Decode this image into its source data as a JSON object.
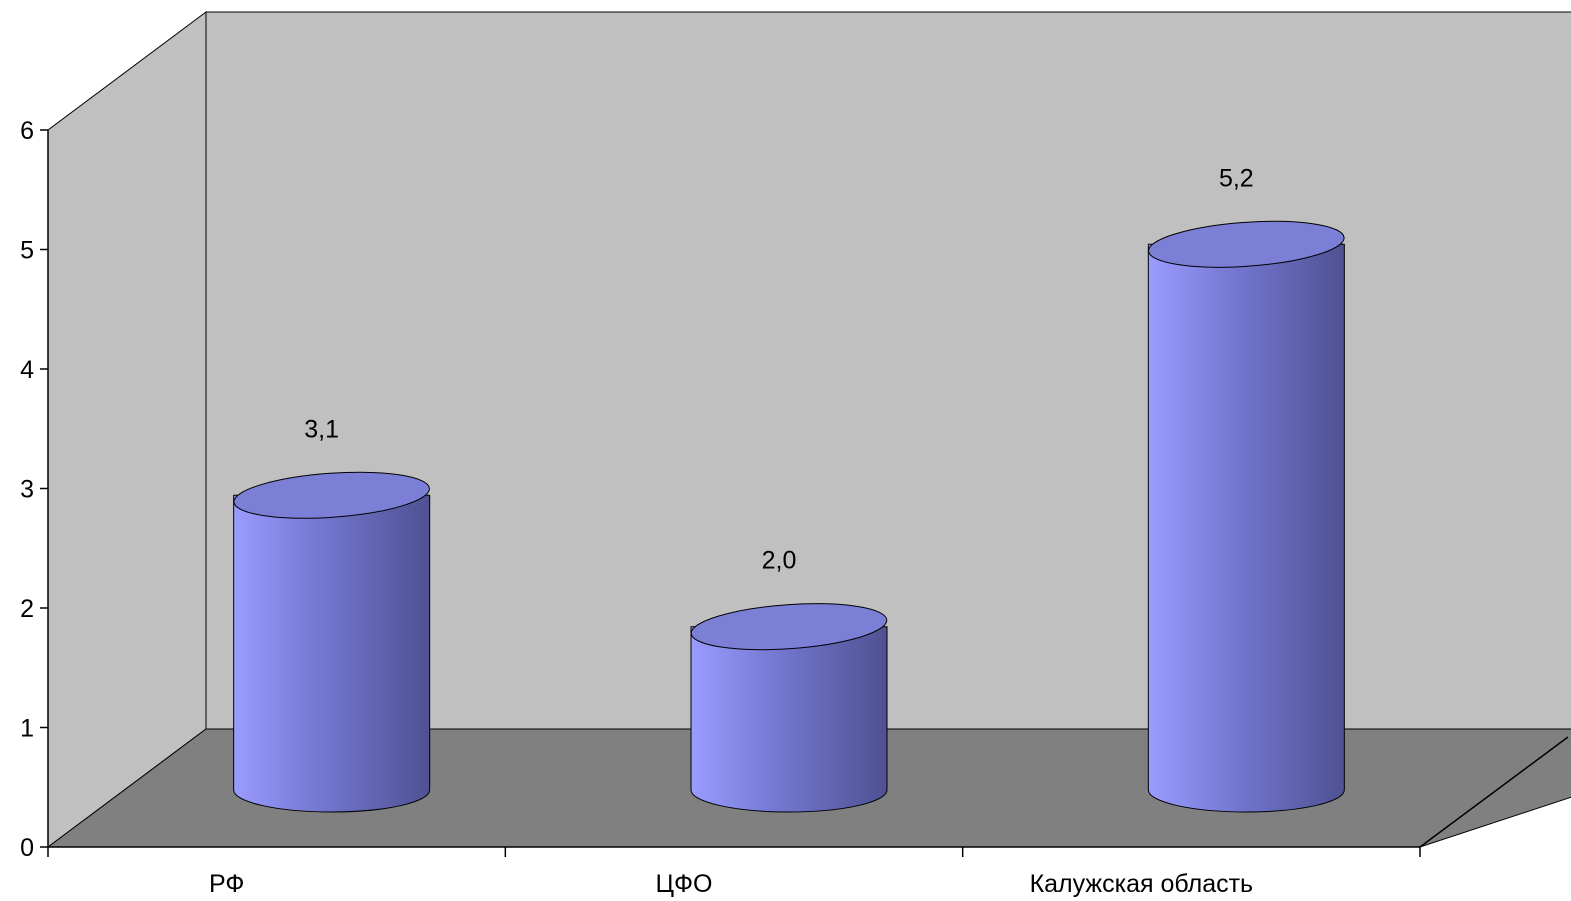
{
  "chart_data": {
    "type": "bar",
    "style": "3d-cylinder",
    "categories": [
      "РФ",
      "ЦФО",
      "Калужская область"
    ],
    "values": [
      3.1,
      2.0,
      5.2
    ],
    "data_labels": [
      "3,1",
      "2,0",
      "5,2"
    ],
    "y_ticks": [
      "0",
      "1",
      "2",
      "3",
      "4",
      "5",
      "6"
    ],
    "ylim": [
      0,
      6
    ],
    "grid": false,
    "legend": "none",
    "colors": {
      "wall": "#c0c0c0",
      "floor": "#808080",
      "bar_light": "#9a9cff",
      "bar_mid": "#7377cf",
      "bar_dark": "#4f5192",
      "bar_top": "#7b7fd6"
    }
  }
}
